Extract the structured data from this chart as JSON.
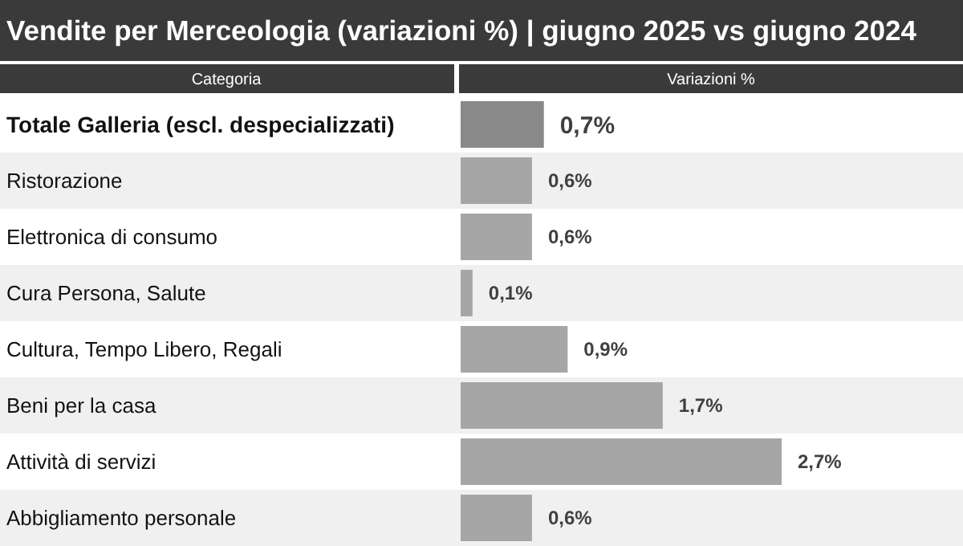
{
  "chart_data": {
    "type": "bar",
    "orientation": "horizontal",
    "title": "Vendite per Merceologia (variazioni %) | giugno 2025 vs giugno 2024",
    "ylabel": "Categoria",
    "xlabel": "Variazioni %",
    "categories": [
      "Totale Galleria (escl. despecializzati)",
      "Ristorazione",
      "Elettronica di consumo",
      "Cura Persona, Salute",
      "Cultura, Tempo Libero, Regali",
      "Beni per la casa",
      "Attività di servizi",
      "Abbigliamento personale"
    ],
    "values": [
      0.7,
      0.6,
      0.6,
      0.1,
      0.9,
      1.7,
      2.7,
      0.6
    ],
    "colors": [
      "#898989",
      "#a6a6a6",
      "#a6a6a6",
      "#a6a6a6",
      "#a6a6a6",
      "#a6a6a6",
      "#a6a6a6",
      "#a6a6a6"
    ],
    "value_labels": [
      "0,7%",
      "0,6%",
      "0,6%",
      "0,1%",
      "0,9%",
      "1,7%",
      "2,7%",
      "0,6%"
    ]
  }
}
